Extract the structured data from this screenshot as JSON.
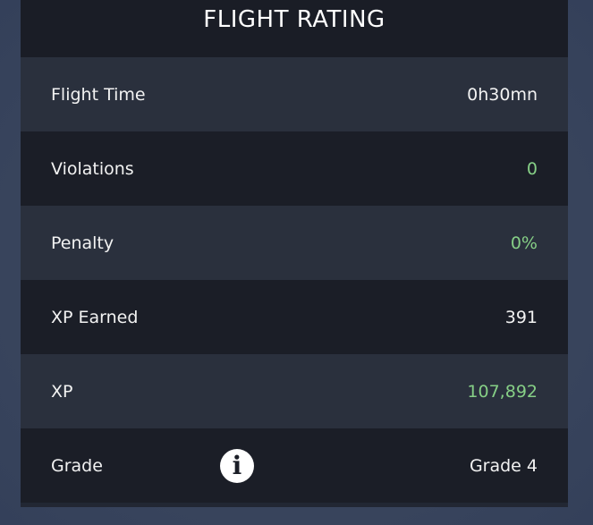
{
  "title": "FLIGHT RATING",
  "rows": [
    {
      "label": "Flight Time",
      "value": "0h30mn",
      "value_color": "#ffffff"
    },
    {
      "label": "Violations",
      "value": "0",
      "value_color": "#86cf86"
    },
    {
      "label": "Penalty",
      "value": "0%",
      "value_color": "#86cf86"
    },
    {
      "label": "XP Earned",
      "value": "391",
      "value_color": "#ffffff"
    },
    {
      "label": "XP",
      "value": "107,892",
      "value_color": "#86cf86"
    },
    {
      "label": "Grade",
      "value": "Grade 4",
      "value_color": "#ffffff",
      "icon": "info-icon"
    }
  ]
}
